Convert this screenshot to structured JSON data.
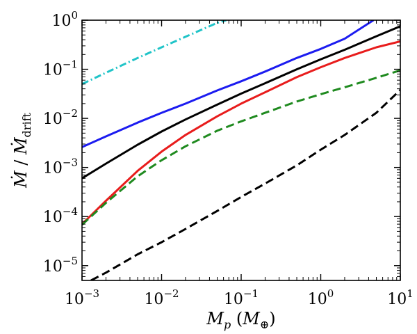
{
  "chart_data": {
    "type": "line",
    "xscale": "log",
    "yscale": "log",
    "xlim": [
      0.001,
      10
    ],
    "ylim": [
      5e-06,
      1
    ],
    "xlabel": {
      "main": "M",
      "sub": "p",
      "paren_open": " (",
      "inner": "M",
      "inner_sub": "⊕",
      "paren_close": ")"
    },
    "ylabel": {
      "num": "Ṁ",
      "slash": " / ",
      "den": "Ṁ",
      "den_sub": "drift"
    },
    "xticks": [
      {
        "value": 0.001,
        "base": "10",
        "exp": "−3"
      },
      {
        "value": 0.01,
        "base": "10",
        "exp": "−2"
      },
      {
        "value": 0.1,
        "base": "10",
        "exp": "−1"
      },
      {
        "value": 1,
        "base": "10",
        "exp": "0"
      },
      {
        "value": 10,
        "base": "10",
        "exp": "1"
      }
    ],
    "yticks": [
      {
        "value": 1e-05,
        "base": "10",
        "exp": "−5"
      },
      {
        "value": 0.0001,
        "base": "10",
        "exp": "−4"
      },
      {
        "value": 0.001,
        "base": "10",
        "exp": "−3"
      },
      {
        "value": 0.01,
        "base": "10",
        "exp": "−2"
      },
      {
        "value": 0.1,
        "base": "10",
        "exp": "−1"
      },
      {
        "value": 1,
        "base": "10",
        "exp": "0"
      }
    ],
    "series": [
      {
        "name": "cyan dash-dot",
        "color": "#20c4c8",
        "style": "dashdot",
        "x": [
          0.001,
          0.002,
          0.005,
          0.01,
          0.02,
          0.05,
          0.065
        ],
        "y": [
          0.05,
          0.085,
          0.17,
          0.28,
          0.46,
          0.88,
          1.0
        ]
      },
      {
        "name": "blue solid",
        "color": "#1c1cf0",
        "style": "solid",
        "x": [
          0.001,
          0.002,
          0.005,
          0.01,
          0.02,
          0.05,
          0.1,
          0.2,
          0.5,
          1,
          2,
          4.6
        ],
        "y": [
          0.0026,
          0.0043,
          0.0082,
          0.013,
          0.02,
          0.037,
          0.057,
          0.09,
          0.17,
          0.26,
          0.42,
          1.0
        ]
      },
      {
        "name": "black solid",
        "color": "#000000",
        "style": "solid",
        "x": [
          0.001,
          0.002,
          0.005,
          0.01,
          0.02,
          0.05,
          0.1,
          0.2,
          0.5,
          1,
          2,
          5,
          10
        ],
        "y": [
          0.0006,
          0.0012,
          0.0029,
          0.0054,
          0.0095,
          0.019,
          0.032,
          0.052,
          0.1,
          0.16,
          0.25,
          0.47,
          0.75
        ]
      },
      {
        "name": "red solid",
        "color": "#e81c1c",
        "style": "solid",
        "x": [
          0.001,
          0.002,
          0.005,
          0.01,
          0.02,
          0.05,
          0.1,
          0.2,
          0.5,
          1,
          2,
          5,
          10
        ],
        "y": [
          7e-05,
          0.00021,
          0.00085,
          0.0021,
          0.0046,
          0.011,
          0.02,
          0.034,
          0.069,
          0.11,
          0.17,
          0.28,
          0.37
        ]
      },
      {
        "name": "green dashed",
        "color": "#1f8a1f",
        "style": "dashed",
        "x": [
          0.001,
          0.002,
          0.005,
          0.01,
          0.02,
          0.05,
          0.1,
          0.2,
          0.5,
          1,
          2,
          5,
          10
        ],
        "y": [
          6.8e-05,
          0.00019,
          0.00066,
          0.0014,
          0.0027,
          0.0056,
          0.0087,
          0.013,
          0.022,
          0.031,
          0.043,
          0.067,
          0.095
        ]
      },
      {
        "name": "black dashed",
        "color": "#000000",
        "style": "dashed",
        "x": [
          0.0013,
          0.002,
          0.005,
          0.01,
          0.02,
          0.05,
          0.1,
          0.2,
          0.5,
          1,
          2,
          5,
          10
        ],
        "y": [
          5e-06,
          7.2e-06,
          1.7e-05,
          3e-05,
          5.6e-05,
          0.00013,
          0.00025,
          0.00047,
          0.0011,
          0.0023,
          0.0046,
          0.013,
          0.038
        ]
      }
    ]
  }
}
